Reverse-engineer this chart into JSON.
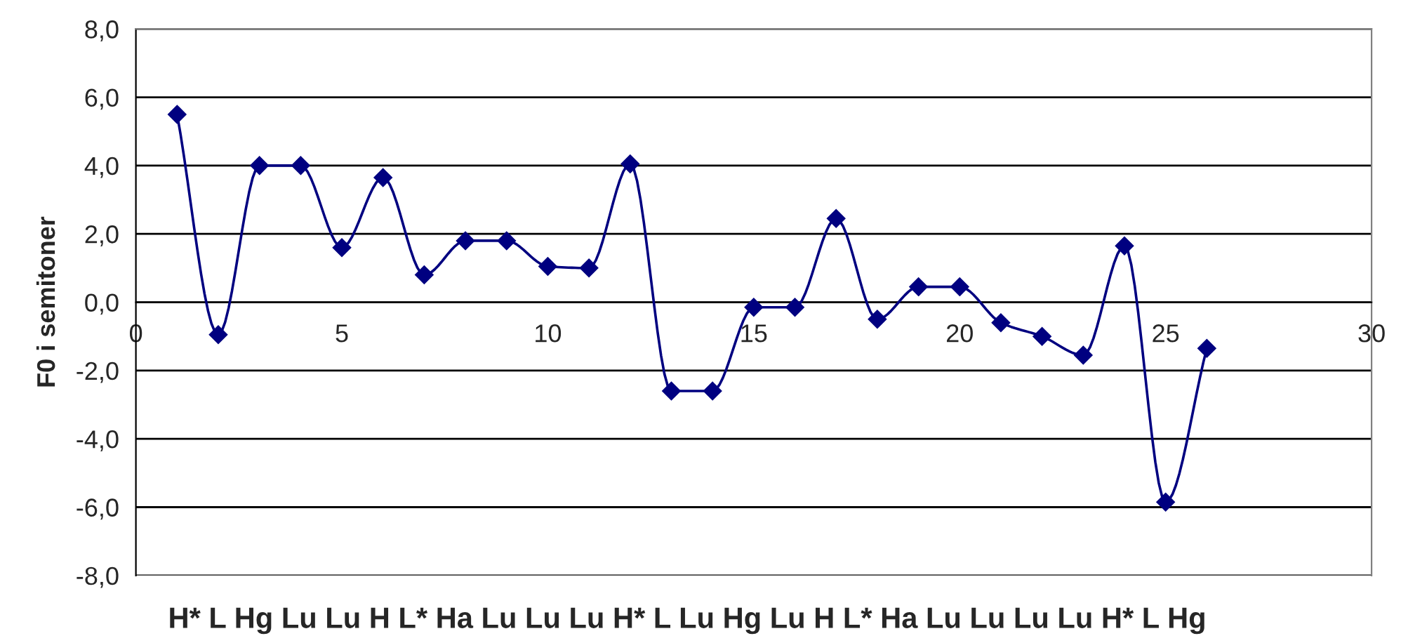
{
  "chart_data": {
    "type": "line",
    "ylabel": "F0 i semitoner",
    "x": [
      1,
      2,
      3,
      4,
      5,
      6,
      7,
      8,
      9,
      10,
      11,
      12,
      13,
      14,
      15,
      16,
      17,
      18,
      19,
      20,
      21,
      22,
      23,
      24,
      25,
      26
    ],
    "series": [
      {
        "color": "#000080",
        "values": [
          5.5,
          -0.95,
          4.0,
          4.0,
          1.6,
          3.65,
          0.8,
          1.8,
          1.8,
          1.05,
          1.0,
          4.05,
          -2.6,
          -2.6,
          -0.15,
          -0.15,
          2.45,
          -0.5,
          0.45,
          0.45,
          -0.6,
          -1.0,
          -1.55,
          1.65,
          -5.85,
          -1.35
        ]
      }
    ],
    "xlim": [
      0,
      30
    ],
    "xticks": [
      0,
      5,
      10,
      15,
      20,
      25,
      30
    ],
    "ylim": [
      -8,
      8
    ],
    "yticks": [
      {
        "value": -8,
        "label": "-8,0"
      },
      {
        "value": -6,
        "label": "-6,0"
      },
      {
        "value": -4,
        "label": "-4,0"
      },
      {
        "value": -2,
        "label": "-2,0"
      },
      {
        "value": 0,
        "label": "0,0"
      },
      {
        "value": 2,
        "label": "2,0"
      },
      {
        "value": 4,
        "label": "4,0"
      },
      {
        "value": 6,
        "label": "6,0"
      },
      {
        "value": 8,
        "label": "8,0"
      }
    ],
    "grid": "y",
    "marker": "diamond",
    "line_style": "solid",
    "legend": false,
    "annotations": [
      "H* L Hg Lu Lu H L* Ha Lu Lu Lu H* L Lu Hg Lu H L* Ha Lu Lu Lu Lu H* L Hg"
    ]
  }
}
